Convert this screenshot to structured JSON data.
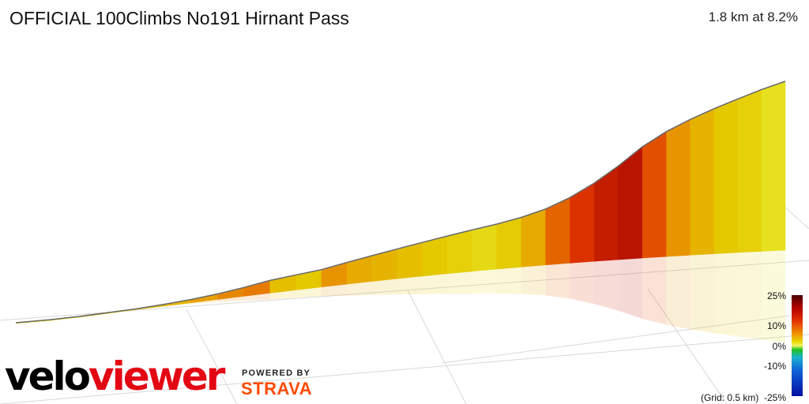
{
  "header": {
    "title": "OFFICIAL 100Climbs No191 Hirnant Pass",
    "summary": "1.8 km at 8.2%"
  },
  "legend": {
    "ticks": [
      "25%",
      "10%",
      "0%",
      "-10%",
      "-25%"
    ],
    "grid_note": "(Grid: 0.5 km)"
  },
  "branding": {
    "logo_part1": "velo",
    "logo_part2": "viewer",
    "powered_by": "POWERED BY",
    "partner": "STRAVA"
  },
  "chart_data": {
    "type": "area",
    "title": "OFFICIAL 100Climbs No191 Hirnant Pass",
    "xlabel": "",
    "ylabel": "",
    "distance_km": 1.8,
    "avg_gradient_pct": 8.2,
    "color_scale_pct": [
      -25,
      25
    ],
    "grid_km": 0.5,
    "segments_gradient_pct": [
      6.5,
      7.0,
      8.0,
      7.5,
      8.5,
      9.0,
      10.0,
      11.0,
      11.5,
      8.5,
      8.0,
      10.5,
      9.5,
      9.0,
      8.5,
      8.0,
      7.5,
      7.0,
      7.8,
      9.5,
      12.5,
      15.0,
      17.0,
      18.0,
      13.5,
      10.5,
      9.0,
      8.0,
      7.5,
      6.5
    ]
  }
}
